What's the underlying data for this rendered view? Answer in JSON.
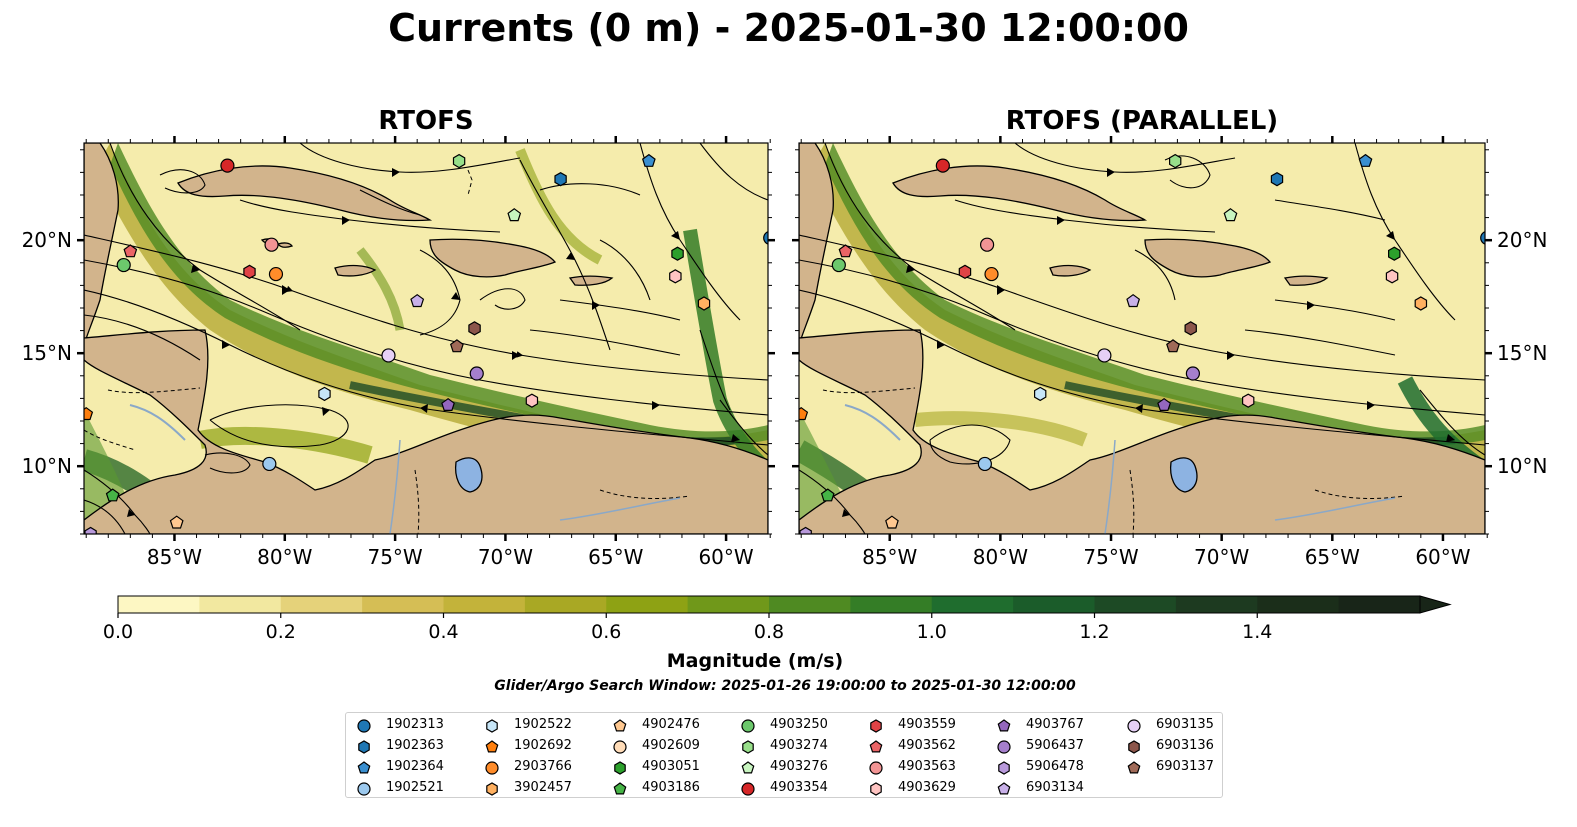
{
  "title": "Currents (0 m) - 2025-01-30 12:00:00",
  "panels": [
    {
      "title": "RTOFS"
    },
    {
      "title": "RTOFS (PARALLEL)"
    }
  ],
  "axes": {
    "lon_ticks": [
      "85°W",
      "80°W",
      "75°W",
      "70°W",
      "65°W",
      "60°W"
    ],
    "lat_ticks": [
      "20°N",
      "15°N",
      "10°N"
    ]
  },
  "colorbar": {
    "label": "Magnitude (m/s)",
    "range": [
      0.0,
      1.6
    ],
    "ticks": [
      "0.0",
      "0.2",
      "0.4",
      "0.6",
      "0.8",
      "1.0",
      "1.2",
      "1.4"
    ],
    "extend": "max",
    "colors": [
      "#fdf7c3",
      "#f2e8a0",
      "#e5d27a",
      "#d5be55",
      "#c3b33a",
      "#a9a824",
      "#8ea214",
      "#70981a",
      "#4f8a22",
      "#347d26",
      "#1f6d2e",
      "#1b5c2a",
      "#1d4a25",
      "#1d3a20",
      "#1b2e1a",
      "#182518"
    ]
  },
  "search_window": "Glider/Argo Search Window: 2025-01-26 19:00:00 to 2025-01-30 12:00:00",
  "legend": [
    {
      "id": "1902313",
      "color": "#1f77b4",
      "marker": "circle"
    },
    {
      "id": "1902363",
      "color": "#1f77b4",
      "marker": "hexagon"
    },
    {
      "id": "1902364",
      "color": "#3a8fd0",
      "marker": "pentagon"
    },
    {
      "id": "1902521",
      "color": "#9cc9ee",
      "marker": "circle"
    },
    {
      "id": "1902522",
      "color": "#c7e6f8",
      "marker": "hexagon"
    },
    {
      "id": "1902692",
      "color": "#ff7f0e",
      "marker": "pentagon"
    },
    {
      "id": "2903766",
      "color": "#ff8c2a",
      "marker": "circle"
    },
    {
      "id": "3902457",
      "color": "#ffb060",
      "marker": "hexagon"
    },
    {
      "id": "4902476",
      "color": "#ffc890",
      "marker": "pentagon"
    },
    {
      "id": "4902609",
      "color": "#ffdcb8",
      "marker": "circle"
    },
    {
      "id": "4903051",
      "color": "#2ca02c",
      "marker": "hexagon"
    },
    {
      "id": "4903186",
      "color": "#46b446",
      "marker": "pentagon"
    },
    {
      "id": "4903250",
      "color": "#6cc86c",
      "marker": "circle"
    },
    {
      "id": "4903274",
      "color": "#98df8a",
      "marker": "hexagon"
    },
    {
      "id": "4903276",
      "color": "#c8f5c0",
      "marker": "pentagon"
    },
    {
      "id": "4903354",
      "color": "#d62728",
      "marker": "circle"
    },
    {
      "id": "4903559",
      "color": "#e04346",
      "marker": "hexagon"
    },
    {
      "id": "4903562",
      "color": "#ea6466",
      "marker": "pentagon"
    },
    {
      "id": "4903563",
      "color": "#f29494",
      "marker": "circle"
    },
    {
      "id": "4903629",
      "color": "#ffc4c2",
      "marker": "hexagon"
    },
    {
      "id": "4903767",
      "color": "#9467bd",
      "marker": "pentagon"
    },
    {
      "id": "5906437",
      "color": "#a57fcc",
      "marker": "circle"
    },
    {
      "id": "5906478",
      "color": "#b899db",
      "marker": "hexagon"
    },
    {
      "id": "6903134",
      "color": "#c8b0e8",
      "marker": "pentagon"
    },
    {
      "id": "6903135",
      "color": "#e6d0f6",
      "marker": "circle"
    },
    {
      "id": "6903136",
      "color": "#8c564b",
      "marker": "hexagon"
    },
    {
      "id": "6903137",
      "color": "#a06a58",
      "marker": "pentagon"
    }
  ],
  "floats": [
    {
      "id": "4903354",
      "lon": -82.6,
      "lat": 23.3
    },
    {
      "id": "4903274",
      "lon": -72.1,
      "lat": 23.5
    },
    {
      "id": "1902364",
      "lon": -63.5,
      "lat": 23.5
    },
    {
      "id": "1902363",
      "lon": -67.5,
      "lat": 22.7
    },
    {
      "id": "4903276",
      "lon": -69.6,
      "lat": 21.1
    },
    {
      "id": "1902313",
      "lon": -58.0,
      "lat": 20.1
    },
    {
      "id": "4903562",
      "lon": -87.0,
      "lat": 19.5
    },
    {
      "id": "4903250",
      "lon": -87.3,
      "lat": 18.9
    },
    {
      "id": "4903563",
      "lon": -80.6,
      "lat": 19.8
    },
    {
      "id": "4903559",
      "lon": -81.6,
      "lat": 18.6
    },
    {
      "id": "2903766",
      "lon": -80.4,
      "lat": 18.5
    },
    {
      "id": "4903051",
      "lon": -62.2,
      "lat": 19.4
    },
    {
      "id": "4903629",
      "lon": -62.3,
      "lat": 18.4
    },
    {
      "id": "3902457",
      "lon": -61.0,
      "lat": 17.2
    },
    {
      "id": "6903134",
      "lon": -74.0,
      "lat": 17.3
    },
    {
      "id": "6903136",
      "lon": -71.4,
      "lat": 16.1
    },
    {
      "id": "6903137",
      "lon": -72.2,
      "lat": 15.3
    },
    {
      "id": "6903135",
      "lon": -75.3,
      "lat": 14.9
    },
    {
      "id": "5906437",
      "lon": -71.3,
      "lat": 14.1
    },
    {
      "id": "1902522",
      "lon": -78.2,
      "lat": 13.2
    },
    {
      "id": "4903629",
      "lon": -68.8,
      "lat": 12.9
    },
    {
      "id": "4903767",
      "lon": -72.6,
      "lat": 12.7
    },
    {
      "id": "1902692",
      "lon": -89.0,
      "lat": 12.3
    },
    {
      "id": "1902521",
      "lon": -80.7,
      "lat": 10.1
    },
    {
      "id": "4903186",
      "lon": -87.8,
      "lat": 8.7
    },
    {
      "id": "4902476",
      "lon": -84.9,
      "lat": 7.5
    },
    {
      "id": "5906478",
      "lon": -88.8,
      "lat": 7.0
    }
  ]
}
